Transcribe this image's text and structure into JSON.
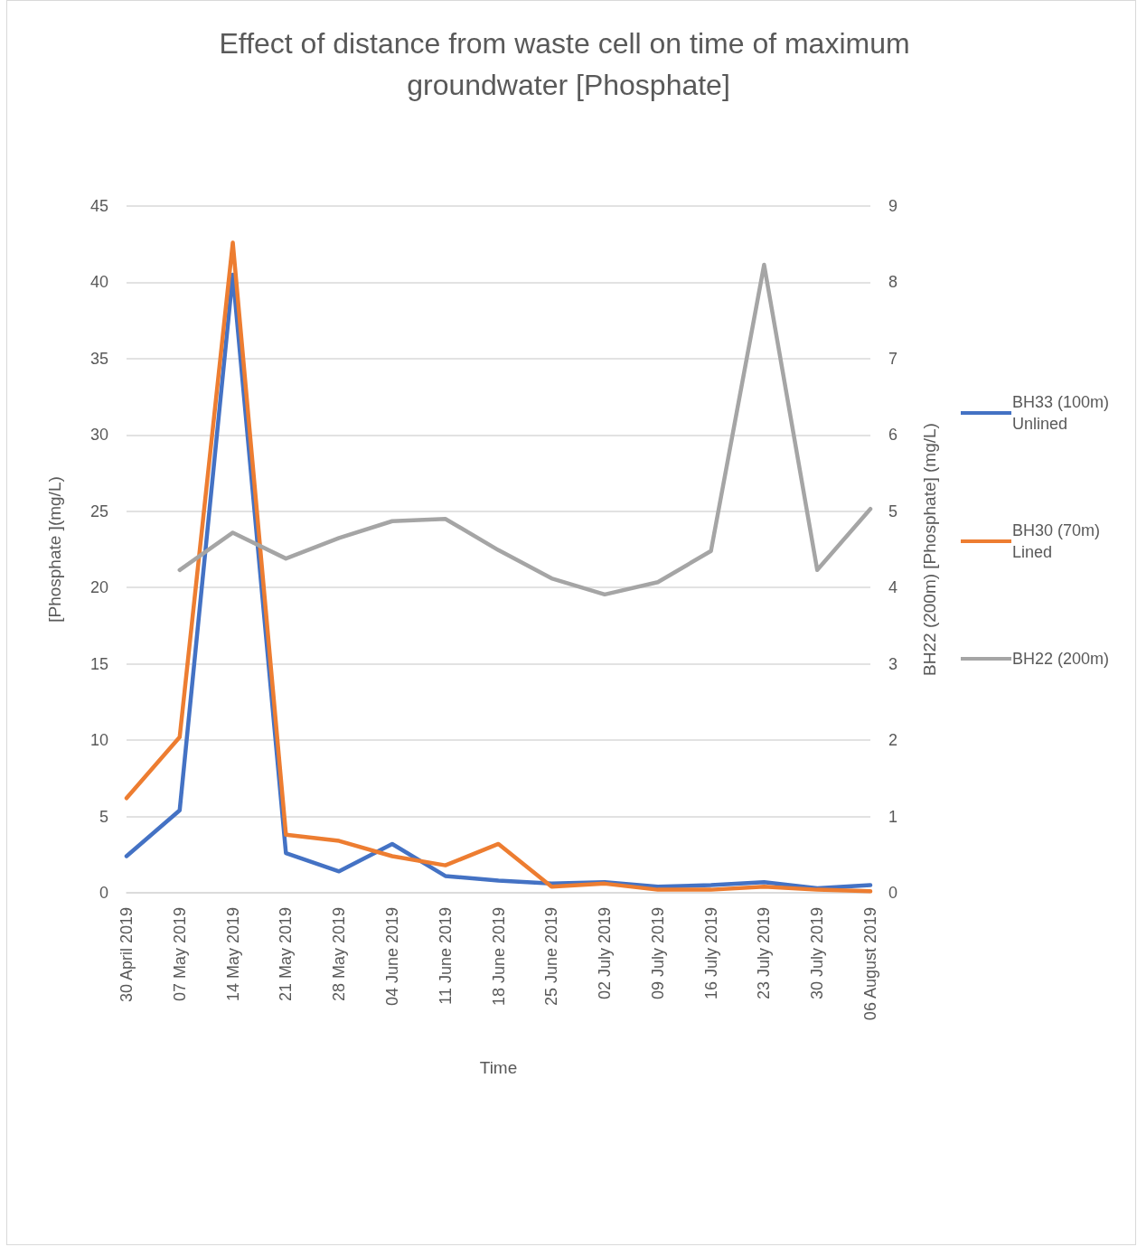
{
  "chart_data": {
    "type": "line",
    "title": "Effect of distance from waste cell on time of maximum groundwater [Phosphate]",
    "xlabel": "Time",
    "ylabel": "[Phosphate ](mg/L)",
    "y2label": "BH22 (200m) [Phosphate] (mg/L)",
    "categories": [
      "30 April 2019",
      "07 May 2019",
      "14 May 2019",
      "21 May 2019",
      "28 May 2019",
      "04 June 2019",
      "11 June 2019",
      "18 June 2019",
      "25 June 2019",
      "02 July 2019",
      "09 July 2019",
      "16 July 2019",
      "23 July 2019",
      "30 July 2019",
      "06 August 2019"
    ],
    "series": [
      {
        "name": "BH33 (100m) Unlined",
        "color": "#4472c4",
        "values": [
          2.4,
          5.4,
          40.5,
          2.6,
          1.4,
          3.2,
          1.1,
          0.8,
          0.6,
          0.7,
          0.4,
          0.5,
          0.7,
          0.3,
          0.5
        ]
      },
      {
        "name": "BH30 (70m) Lined",
        "color": "#ed7d31",
        "values": [
          6.2,
          10.2,
          42.6,
          3.8,
          3.4,
          2.4,
          1.8,
          3.2,
          0.4,
          0.6,
          0.2,
          0.2,
          0.4,
          0.2,
          0.1
        ]
      },
      {
        "name": "BH22 (200m)",
        "color": "#a5a5a5",
        "axis": "y2",
        "values": [
          null,
          4.23,
          4.72,
          4.38,
          4.65,
          4.87,
          4.9,
          4.49,
          4.12,
          3.91,
          4.07,
          4.48,
          8.23,
          4.23,
          5.03
        ]
      }
    ],
    "ylim": [
      0,
      45
    ],
    "yticks": [
      0,
      5,
      10,
      15,
      20,
      25,
      30,
      35,
      40,
      45
    ],
    "y2lim": [
      0,
      9
    ],
    "y2ticks": [
      0,
      1,
      2,
      3,
      4,
      5,
      6,
      7,
      8,
      9
    ],
    "grid": "y",
    "legend": "right",
    "marker": "none",
    "line_style": "solid"
  }
}
